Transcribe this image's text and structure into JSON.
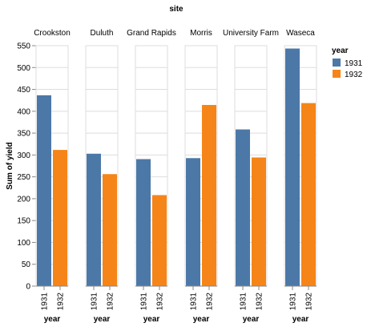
{
  "chart_data": {
    "type": "bar",
    "facet_title": "site",
    "facets": [
      "Crookston",
      "Duluth",
      "Grand Rapids",
      "Morris",
      "University Farm",
      "Waseca"
    ],
    "categories": [
      "1931",
      "1932"
    ],
    "xlabel": "year",
    "ylabel": "Sum of yield",
    "ylim": [
      0,
      550
    ],
    "yticks": [
      0,
      50,
      100,
      150,
      200,
      250,
      300,
      350,
      400,
      450,
      500,
      550
    ],
    "grid": true,
    "legend": {
      "title": "year",
      "placement": "right",
      "entries": [
        {
          "label": "1931",
          "color": "#4c78a8"
        },
        {
          "label": "1932",
          "color": "#f58518"
        }
      ]
    },
    "values": {
      "Crookston": {
        "1931": 436.6,
        "1932": 311.5
      },
      "Duluth": {
        "1931": 302.9,
        "1932": 256.2
      },
      "Grand Rapids": {
        "1931": 290.5,
        "1932": 208.2
      },
      "Morris": {
        "1931": 292.8,
        "1932": 414.4
      },
      "University Farm": {
        "1931": 358.4,
        "1932": 294.3
      },
      "Waseca": {
        "1931": 543.5,
        "1932": 418.7
      }
    }
  }
}
